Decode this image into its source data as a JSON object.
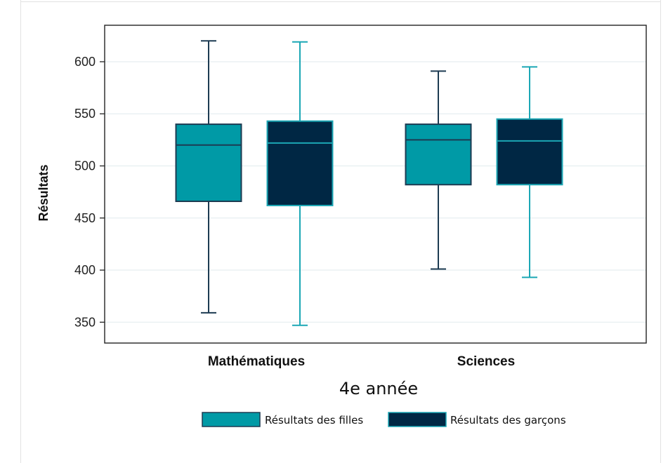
{
  "chart_data": {
    "type": "box",
    "ylabel": "Résultats",
    "xlabel": "4e année",
    "ylim": [
      330,
      635
    ],
    "yticks": [
      350,
      400,
      450,
      500,
      550,
      600
    ],
    "grid": true,
    "legend_position": "bottom",
    "categories": [
      "Mathématiques",
      "Sciences"
    ],
    "series": [
      {
        "name": "Résultats des filles",
        "fill": "#009aa6",
        "line": "#1d3b52",
        "boxes": [
          {
            "min": 359,
            "q1": 466,
            "median": 520,
            "q3": 540,
            "max": 620
          },
          {
            "min": 401,
            "q1": 482,
            "median": 525,
            "q3": 540,
            "max": 591
          }
        ]
      },
      {
        "name": "Résultats des garçons",
        "fill": "#002744",
        "line": "#1ba7b5",
        "boxes": [
          {
            "min": 347,
            "q1": 462,
            "median": 522,
            "q3": 543,
            "max": 619
          },
          {
            "min": 393,
            "q1": 482,
            "median": 524,
            "q3": 545,
            "max": 595
          }
        ]
      }
    ]
  }
}
